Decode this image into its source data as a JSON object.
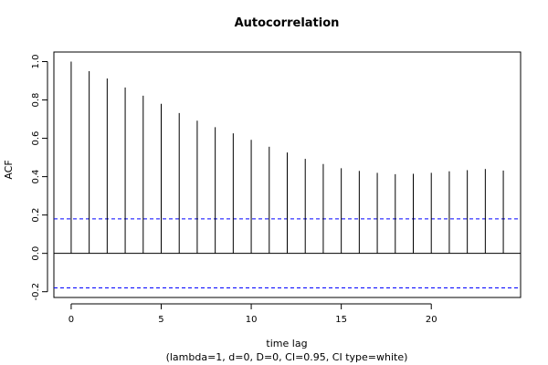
{
  "chart_data": {
    "type": "bar",
    "title": "Autocorrelation",
    "xlabel": "time lag",
    "subtitle": "(lambda=1, d=0, D=0, CI=0.95, CI type=white)",
    "ylabel": "ACF",
    "xlim": [
      -0.96,
      24.96
    ],
    "ylim": [
      -0.23,
      1.05
    ],
    "x_ticks": [
      0,
      5,
      10,
      15,
      20
    ],
    "x_tick_labels": [
      "0",
      "5",
      "10",
      "15",
      "20"
    ],
    "y_ticks": [
      -0.2,
      0.0,
      0.2,
      0.4,
      0.6,
      0.8,
      1.0
    ],
    "y_tick_labels": [
      "-0.2",
      "0.0",
      "0.2",
      "0.4",
      "0.6",
      "0.8",
      "1.0"
    ],
    "lags": [
      0,
      1,
      2,
      3,
      4,
      5,
      6,
      7,
      8,
      9,
      10,
      11,
      12,
      13,
      14,
      15,
      16,
      17,
      18,
      19,
      20,
      21,
      22,
      23,
      24
    ],
    "values": [
      1.0,
      0.95,
      0.912,
      0.865,
      0.822,
      0.78,
      0.732,
      0.692,
      0.658,
      0.626,
      0.592,
      0.556,
      0.526,
      0.493,
      0.466,
      0.444,
      0.43,
      0.42,
      0.413,
      0.415,
      0.42,
      0.428,
      0.434,
      0.44,
      0.432
    ],
    "confidence_bound": 0.18,
    "zero_line": true,
    "grid": false,
    "legend": "none",
    "colors": {
      "bars": "#000000",
      "confidence": "#0000ff",
      "axes": "#000000"
    }
  }
}
